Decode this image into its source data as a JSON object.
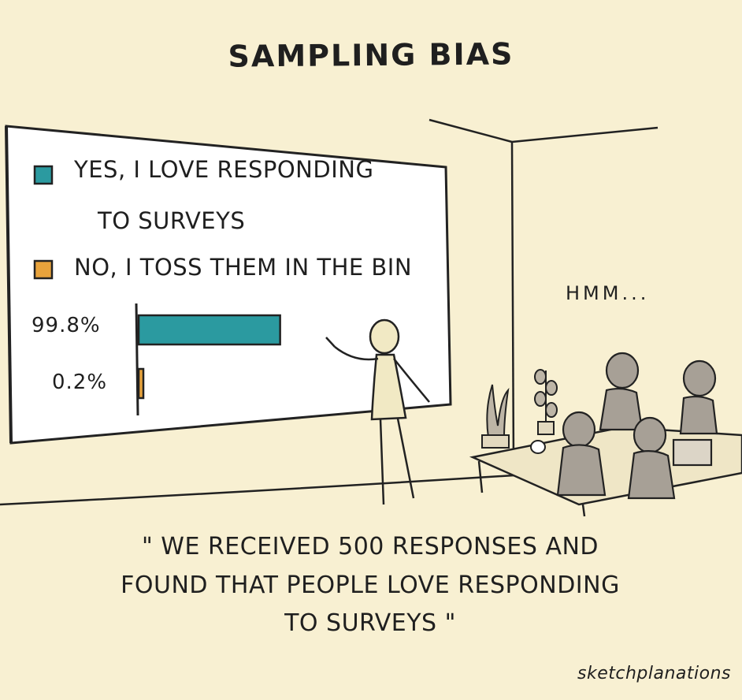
{
  "title": "SAMPLING BIAS",
  "colors": {
    "background": "#f8f0d2",
    "board": "#ffffff",
    "yes": "#2b9aa0",
    "no": "#e8a33c",
    "figure": "#f1e9c4",
    "people": "#a7a096"
  },
  "legend": [
    {
      "swatch": "teal-square-icon",
      "label_line1": "YES, I LOVE RESPONDING",
      "label_line2": "TO SURVEYS"
    },
    {
      "swatch": "orange-square-icon",
      "label_line1": "NO, I TOSS THEM IN THE BIN"
    }
  ],
  "chart_data": {
    "type": "bar",
    "categories": [
      "YES, I LOVE RESPONDING TO SURVEYS",
      "NO, I TOSS THEM IN THE BIN"
    ],
    "values": [
      99.8,
      0.2
    ],
    "data_labels": [
      "99.8%",
      "0.2%"
    ],
    "orientation": "horizontal",
    "xlim": [
      0,
      100
    ],
    "title": "",
    "xlabel": "",
    "ylabel": ""
  },
  "speech": "HMM...",
  "quote": {
    "line1": "\" WE RECEIVED 500 RESPONSES AND",
    "line2": "FOUND THAT PEOPLE LOVE RESPONDING",
    "line3": "TO SURVEYS \""
  },
  "credit": "sketchplanations"
}
